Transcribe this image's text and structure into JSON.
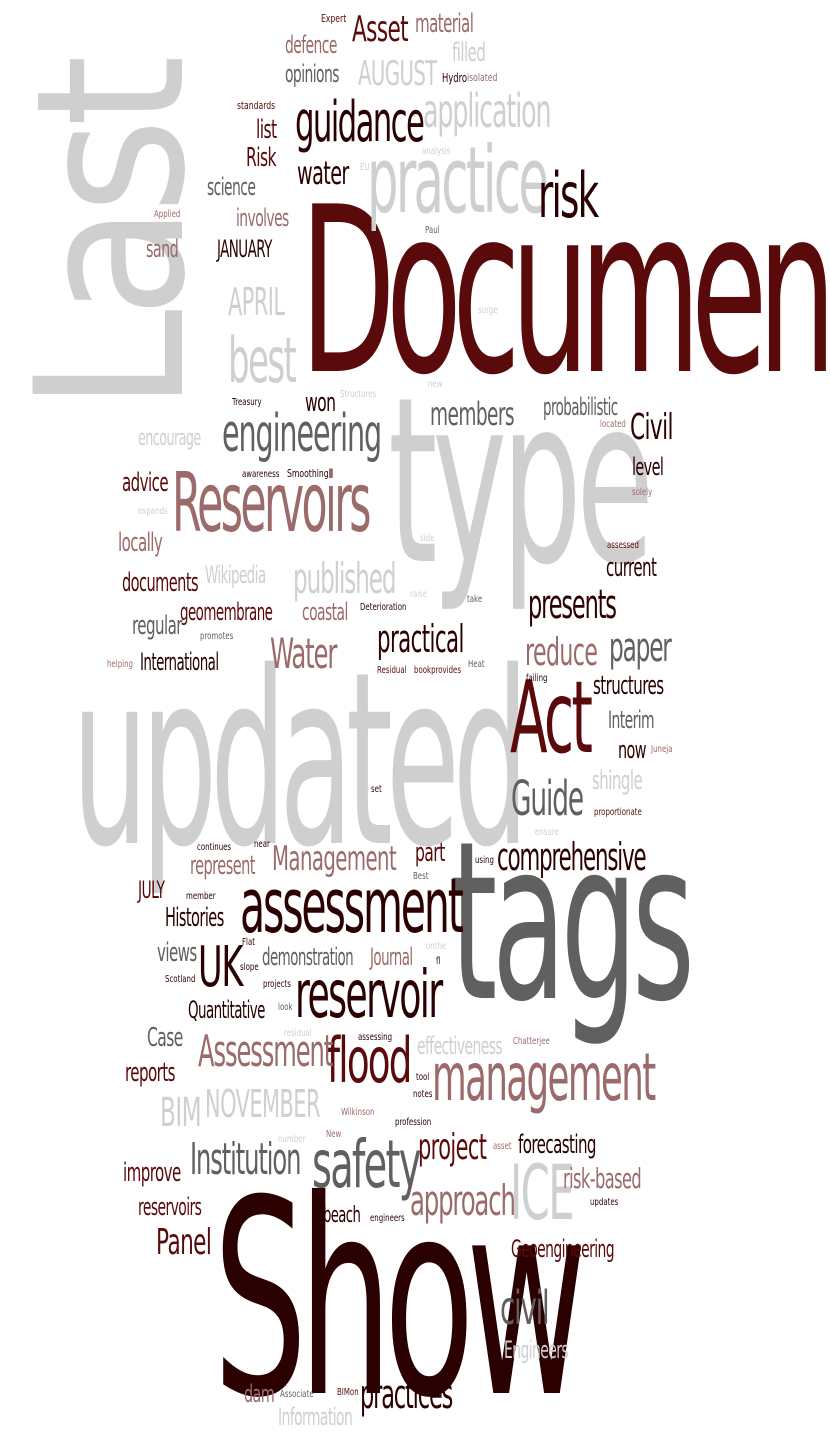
{
  "colors": {
    "dark": "#5a0a0a",
    "black": "#2a0000",
    "rose": "#9b6b6b",
    "gray": "#606060",
    "light": "#cfcfcf"
  },
  "words": [
    {
      "text": "Document",
      "color": "dark",
      "r": 0
    },
    {
      "text": "Last",
      "color": "light",
      "r": -90
    },
    {
      "text": "type",
      "color": "light",
      "r": 0
    },
    {
      "text": "updated",
      "color": "light",
      "r": 0
    },
    {
      "text": "tags",
      "color": "gray",
      "r": 0
    },
    {
      "text": "Show",
      "color": "black",
      "r": 0
    },
    {
      "text": "Reservoirs",
      "color": "rose",
      "r": 0
    },
    {
      "text": "practice",
      "color": "light",
      "r": 0
    },
    {
      "text": "risk",
      "color": "black",
      "r": 0
    },
    {
      "text": "Act",
      "color": "dark",
      "r": 0
    },
    {
      "text": "assessment",
      "color": "black",
      "r": 0
    },
    {
      "text": "management",
      "color": "rose",
      "r": 0
    },
    {
      "text": "reservoir",
      "color": "black",
      "r": 0
    },
    {
      "text": "safety",
      "color": "gray",
      "r": 0
    },
    {
      "text": "flood",
      "color": "dark",
      "r": 0
    },
    {
      "text": "guidance",
      "color": "black",
      "r": 0
    },
    {
      "text": "engineering",
      "color": "gray",
      "r": 0
    },
    {
      "text": "ICE",
      "color": "light",
      "r": 0
    },
    {
      "text": "UK",
      "color": "black",
      "r": 0
    },
    {
      "text": "Assessment",
      "color": "rose",
      "r": 0
    },
    {
      "text": "application",
      "color": "light",
      "r": 0
    },
    {
      "text": "comprehensive",
      "color": "black",
      "r": 0
    },
    {
      "text": "best",
      "color": "light",
      "r": 0
    },
    {
      "text": "Guide",
      "color": "gray",
      "r": 0
    },
    {
      "text": "approach",
      "color": "rose",
      "r": 0
    },
    {
      "text": "Institution",
      "color": "gray",
      "r": 0
    },
    {
      "text": "Water",
      "color": "rose",
      "r": 0
    },
    {
      "text": "Management",
      "color": "rose",
      "r": 0
    },
    {
      "text": "practical",
      "color": "black",
      "r": 0
    },
    {
      "text": "published",
      "color": "light",
      "r": 0
    },
    {
      "text": "presents",
      "color": "black",
      "r": 0
    },
    {
      "text": "paper",
      "color": "gray",
      "r": 0
    },
    {
      "text": "reduce",
      "color": "rose",
      "r": 0
    },
    {
      "text": "civil",
      "color": "gray",
      "r": 0
    },
    {
      "text": "project",
      "color": "dark",
      "r": 0
    },
    {
      "text": "members",
      "color": "gray",
      "r": 0
    },
    {
      "text": "Civil",
      "color": "black",
      "r": 0
    },
    {
      "text": "water",
      "color": "black",
      "r": 0
    },
    {
      "text": "Asset",
      "color": "dark",
      "r": 0
    },
    {
      "text": "AUGUST",
      "color": "light",
      "r": 0
    },
    {
      "text": "NOVEMBER",
      "color": "light",
      "r": 0
    },
    {
      "text": "APRIL",
      "color": "light",
      "r": 0
    },
    {
      "text": "BIM",
      "color": "light",
      "r": 0
    },
    {
      "text": "practices",
      "color": "black",
      "r": 0
    },
    {
      "text": "Panel",
      "color": "dark",
      "r": 0
    },
    {
      "text": "effectiveness",
      "color": "light",
      "r": 0
    },
    {
      "text": "forecasting",
      "color": "black",
      "r": 0
    },
    {
      "text": "risk-based",
      "color": "rose",
      "r": 0
    },
    {
      "text": "probabilistic",
      "color": "gray",
      "r": 0
    },
    {
      "text": "demonstration",
      "color": "gray",
      "r": 0
    },
    {
      "text": "Journal",
      "color": "rose",
      "r": 0
    },
    {
      "text": "Quantitative",
      "color": "black",
      "r": 0
    },
    {
      "text": "Histories",
      "color": "black",
      "r": 0
    },
    {
      "text": "represent",
      "color": "rose",
      "r": 0
    },
    {
      "text": "International",
      "color": "black",
      "r": 0
    },
    {
      "text": "geomembrane",
      "color": "dark",
      "r": 0
    },
    {
      "text": "documents",
      "color": "dark",
      "r": 0
    },
    {
      "text": "Wikipedia",
      "color": "light",
      "r": 0
    },
    {
      "text": "coastal",
      "color": "rose",
      "r": 0
    },
    {
      "text": "regular",
      "color": "gray",
      "r": 0
    },
    {
      "text": "locally",
      "color": "rose",
      "r": 0
    },
    {
      "text": "advice",
      "color": "dark",
      "r": 0
    },
    {
      "text": "encourage",
      "color": "light",
      "r": 0
    },
    {
      "text": "won",
      "color": "black",
      "r": 0
    },
    {
      "text": "level",
      "color": "black",
      "r": 0
    },
    {
      "text": "current",
      "color": "black",
      "r": 0
    },
    {
      "text": "structures",
      "color": "black",
      "r": 0
    },
    {
      "text": "Interim",
      "color": "gray",
      "r": 0
    },
    {
      "text": "now",
      "color": "black",
      "r": 0
    },
    {
      "text": "shingle",
      "color": "light",
      "r": 0
    },
    {
      "text": "part",
      "color": "dark",
      "r": 0
    },
    {
      "text": "JULY",
      "color": "dark",
      "r": 0
    },
    {
      "text": "views",
      "color": "gray",
      "r": 0
    },
    {
      "text": "Case",
      "color": "gray",
      "r": 0
    },
    {
      "text": "reports",
      "color": "dark",
      "r": 0
    },
    {
      "text": "improve",
      "color": "dark",
      "r": 0
    },
    {
      "text": "reservoirs",
      "color": "dark",
      "r": 0
    },
    {
      "text": "beach",
      "color": "black",
      "r": 0
    },
    {
      "text": "Geoengineering",
      "color": "dark",
      "r": 0
    },
    {
      "text": "Engineers",
      "color": "light",
      "r": 0
    },
    {
      "text": "Information",
      "color": "light",
      "r": 0
    },
    {
      "text": "dam",
      "color": "rose",
      "r": 0
    },
    {
      "text": "science",
      "color": "gray",
      "r": 0
    },
    {
      "text": "involves",
      "color": "rose",
      "r": 0
    },
    {
      "text": "JANUARY",
      "color": "black",
      "r": 0
    },
    {
      "text": "sand",
      "color": "rose",
      "r": 0
    },
    {
      "text": "Risk",
      "color": "dark",
      "r": 0
    },
    {
      "text": "list",
      "color": "dark",
      "r": 0
    },
    {
      "text": "defence",
      "color": "rose",
      "r": 0
    },
    {
      "text": "opinions",
      "color": "gray",
      "r": 0
    },
    {
      "text": "material",
      "color": "rose",
      "r": 0
    },
    {
      "text": "filled",
      "color": "light",
      "r": 0
    },
    {
      "text": "Expert",
      "color": "dark",
      "r": 0
    },
    {
      "text": "Hydro",
      "color": "black",
      "r": 0
    },
    {
      "text": "isolated",
      "color": "rose",
      "r": 0
    },
    {
      "text": "standards",
      "color": "dark",
      "r": 0
    },
    {
      "text": "EU",
      "color": "light",
      "r": 0
    },
    {
      "text": "analysis",
      "color": "light",
      "r": 0
    },
    {
      "text": "Applied",
      "color": "rose",
      "r": 0
    },
    {
      "text": "Paul",
      "color": "gray",
      "r": 0
    },
    {
      "text": "surge",
      "color": "light",
      "r": 0
    },
    {
      "text": "Treasury",
      "color": "black",
      "r": 0
    },
    {
      "text": "Structures",
      "color": "light",
      "r": 0
    },
    {
      "text": "new",
      "color": "light",
      "r": 0
    },
    {
      "text": "located",
      "color": "rose",
      "r": 0
    },
    {
      "text": "solely",
      "color": "rose",
      "r": 0
    },
    {
      "text": "awareness",
      "color": "black",
      "r": 0
    },
    {
      "text": "Smoothing",
      "color": "black",
      "r": 0
    },
    {
      "text": "expands",
      "color": "light",
      "r": 0
    },
    {
      "text": "side",
      "color": "light",
      "r": 0
    },
    {
      "text": "assessed",
      "color": "dark",
      "r": 0
    },
    {
      "text": "raise",
      "color": "light",
      "r": 0
    },
    {
      "text": "take",
      "color": "gray",
      "r": 0
    },
    {
      "text": "Deterioration",
      "color": "black",
      "r": 0
    },
    {
      "text": "promotes",
      "color": "gray",
      "r": 0
    },
    {
      "text": "helping",
      "color": "rose",
      "r": 0
    },
    {
      "text": "Residual",
      "color": "dark",
      "r": 0
    },
    {
      "text": "bookprovides",
      "color": "dark",
      "r": 0
    },
    {
      "text": "Heat",
      "color": "gray",
      "r": 0
    },
    {
      "text": "failing",
      "color": "black",
      "r": 0
    },
    {
      "text": "Juneja",
      "color": "rose",
      "r": 0
    },
    {
      "text": "proportionate",
      "color": "dark",
      "r": 0
    },
    {
      "text": "set",
      "color": "black",
      "r": 0
    },
    {
      "text": "ensure",
      "color": "light",
      "r": 0
    },
    {
      "text": "continues",
      "color": "black",
      "r": 0
    },
    {
      "text": "near",
      "color": "black",
      "r": 0
    },
    {
      "text": "member",
      "color": "black",
      "r": 0
    },
    {
      "text": "Best",
      "color": "gray",
      "r": 0
    },
    {
      "text": "using",
      "color": "black",
      "r": 0
    },
    {
      "text": "Flat",
      "color": "black",
      "r": 0
    },
    {
      "text": "slope",
      "color": "black",
      "r": 0
    },
    {
      "text": "Scotland",
      "color": "black",
      "r": 0
    },
    {
      "text": "projects",
      "color": "black",
      "r": 0
    },
    {
      "text": "look",
      "color": "gray",
      "r": 0
    },
    {
      "text": "onthe",
      "color": "light",
      "r": 0
    },
    {
      "text": "fl",
      "color": "black",
      "r": 0
    },
    {
      "text": "residual",
      "color": "light",
      "r": 0
    },
    {
      "text": "assessing",
      "color": "black",
      "r": 0
    },
    {
      "text": "Chatterjee",
      "color": "rose",
      "r": 0
    },
    {
      "text": "tool",
      "color": "black",
      "r": 0
    },
    {
      "text": "notes",
      "color": "black",
      "r": 0
    },
    {
      "text": "Wilkinson",
      "color": "rose",
      "r": 0
    },
    {
      "text": "profession",
      "color": "black",
      "r": 0
    },
    {
      "text": "number",
      "color": "light",
      "r": 0
    },
    {
      "text": "New",
      "color": "rose",
      "r": 0
    },
    {
      "text": "asset",
      "color": "rose",
      "r": 0
    },
    {
      "text": "engineers",
      "color": "black",
      "r": 0
    },
    {
      "text": "updates",
      "color": "black",
      "r": 0
    },
    {
      "text": "Associate",
      "color": "gray",
      "r": 0
    },
    {
      "text": "BIMon",
      "color": "dark",
      "r": 0
    }
  ]
}
